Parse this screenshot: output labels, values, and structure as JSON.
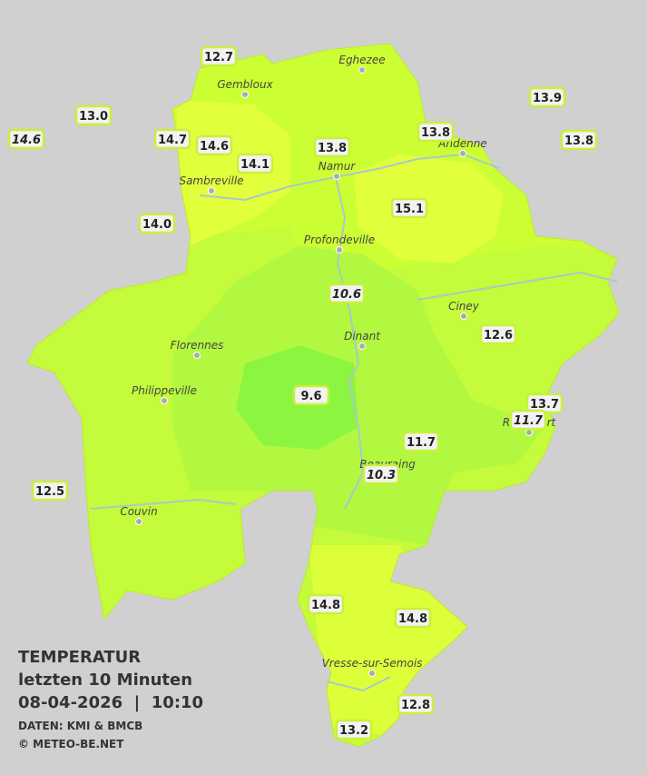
{
  "title": {
    "line1": "TEMPERATUR",
    "line2": "letzten 10 Minuten",
    "line3": "08-04-2026  |  10:10",
    "source": "DATEN: KMI & BMCB",
    "copyright": "© METEO-BE.NET"
  },
  "towns": [
    "Eghezee",
    "Gembloux",
    "Andenne",
    "Namur",
    "Sambreville",
    "Profondeville",
    "Ciney",
    "Dinant",
    "Florennes",
    "Philippeville",
    "Rochefort",
    "Beauraing",
    "Couvin",
    "Vresse-sur-Semois"
  ],
  "stations": [
    {
      "label": "12.7"
    },
    {
      "label": "13.0"
    },
    {
      "label": "14.6",
      "italic": true
    },
    {
      "label": "14.7"
    },
    {
      "label": "14.6"
    },
    {
      "label": "14.1"
    },
    {
      "label": "13.8"
    },
    {
      "label": "13.8"
    },
    {
      "label": "13.9"
    },
    {
      "label": "13.8"
    },
    {
      "label": "14.0"
    },
    {
      "label": "15.1"
    },
    {
      "label": "10.6",
      "italic": true
    },
    {
      "label": "12.6"
    },
    {
      "label": "9.6"
    },
    {
      "label": "13.7"
    },
    {
      "label": "11.7",
      "italic": true
    },
    {
      "label": "11.7"
    },
    {
      "label": "10.3",
      "italic": true
    },
    {
      "label": "12.5"
    },
    {
      "label": "14.8"
    },
    {
      "label": "14.8"
    },
    {
      "label": "12.8"
    },
    {
      "label": "13.2"
    }
  ]
}
